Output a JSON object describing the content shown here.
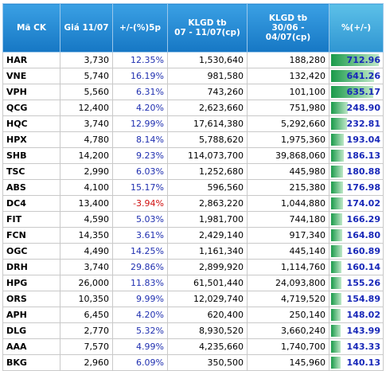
{
  "table": {
    "header": [
      "Mã CK",
      "Giá 11/07",
      "+/-(%)5p",
      "KLGD tb\n07 - 11/07(cp)",
      "KLGD tb\n30/06 - 04/07(cp)",
      "%(+/-)"
    ],
    "rows": [
      [
        "HAR",
        "3,730",
        "12.35%",
        "1,530,640",
        "188,280",
        "712.96"
      ],
      [
        "VNE",
        "5,740",
        "16.19%",
        "981,580",
        "132,420",
        "641.26"
      ],
      [
        "VPH",
        "5,560",
        "6.31%",
        "743,260",
        "101,100",
        "635.17"
      ],
      [
        "QCG",
        "12,400",
        "4.20%",
        "2,623,660",
        "751,980",
        "248.90"
      ],
      [
        "HQC",
        "3,740",
        "12.99%",
        "17,614,380",
        "5,292,660",
        "232.81"
      ],
      [
        "HPX",
        "4,780",
        "8.14%",
        "5,788,620",
        "1,975,360",
        "193.04"
      ],
      [
        "SHB",
        "14,200",
        "9.23%",
        "114,073,700",
        "39,868,060",
        "186.13"
      ],
      [
        "TSC",
        "2,990",
        "6.03%",
        "1,252,680",
        "445,980",
        "180.88"
      ],
      [
        "ABS",
        "4,100",
        "15.17%",
        "596,560",
        "215,380",
        "176.98"
      ],
      [
        "DC4",
        "13,400",
        "-3.94%",
        "2,863,220",
        "1,044,880",
        "174.02"
      ],
      [
        "FIT",
        "4,590",
        "5.03%",
        "1,981,700",
        "744,180",
        "166.29"
      ],
      [
        "FCN",
        "14,350",
        "3.61%",
        "2,429,140",
        "917,340",
        "164.80"
      ],
      [
        "OGC",
        "4,490",
        "14.25%",
        "1,161,340",
        "445,140",
        "160.89"
      ],
      [
        "DRH",
        "3,740",
        "29.86%",
        "2,899,920",
        "1,114,760",
        "160.14"
      ],
      [
        "HPG",
        "26,000",
        "11.83%",
        "61,501,440",
        "24,093,800",
        "155.26"
      ],
      [
        "ORS",
        "10,350",
        "9.99%",
        "12,029,740",
        "4,719,520",
        "154.89"
      ],
      [
        "APH",
        "6,450",
        "4.20%",
        "620,400",
        "250,140",
        "148.02"
      ],
      [
        "DLG",
        "2,770",
        "5.32%",
        "8,930,520",
        "3,660,240",
        "143.99"
      ],
      [
        "AAA",
        "7,570",
        "4.99%",
        "4,235,660",
        "1,740,700",
        "143.33"
      ],
      [
        "BKG",
        "2,960",
        "6.09%",
        "350,500",
        "145,960",
        "140.13"
      ]
    ]
  }
}
